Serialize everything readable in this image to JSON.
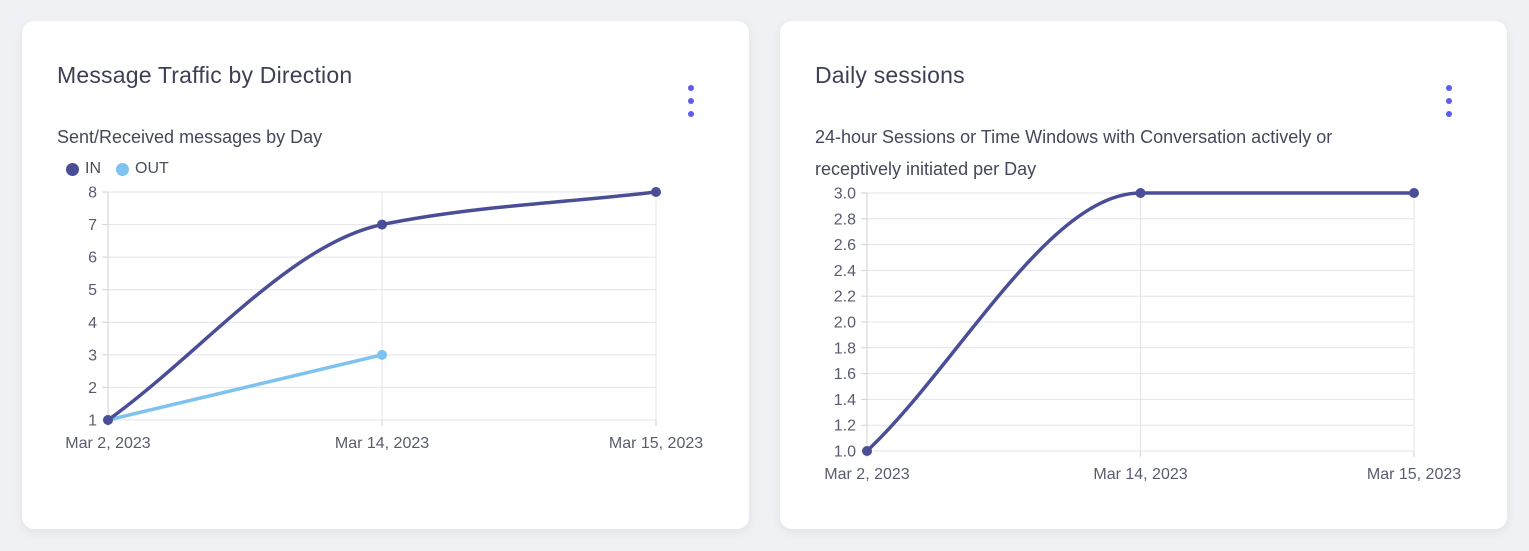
{
  "colors": {
    "page_bg": "#f0f1f4",
    "card_bg": "#ffffff",
    "accent": "#5c5cf0",
    "title_text": "#3e4156",
    "subtitle_text": "#45485a",
    "tick_text": "#595c6e",
    "grid": "#e4e4e9",
    "axis": "#d2d2da",
    "series_in": "#4a4e96",
    "series_out": "#7ec2ef"
  },
  "cards": [
    {
      "title": "Message Traffic by Direction",
      "subtitle_lines": [
        "Sent/Received messages by Day"
      ]
    },
    {
      "title": "Daily sessions",
      "subtitle_lines": [
        "24-hour Sessions or Time Windows with Conversation actively or",
        "receptively initiated per Day"
      ]
    }
  ],
  "chart_data": [
    {
      "type": "line",
      "title": "Message Traffic by Direction",
      "subtitle": "Sent/Received messages by Day",
      "categories": [
        "Mar 2, 2023",
        "Mar 14, 2023",
        "Mar 15, 2023"
      ],
      "series": [
        {
          "name": "IN",
          "color": "#4a4e96",
          "values": [
            1,
            7,
            8
          ]
        },
        {
          "name": "OUT",
          "color": "#7ec2ef",
          "values": [
            1,
            3,
            null
          ]
        }
      ],
      "ylim": [
        1,
        8
      ],
      "ytick_labels": [
        "1",
        "2",
        "3",
        "4",
        "5",
        "6",
        "7",
        "8"
      ],
      "grid": true,
      "legend_position": "top-left"
    },
    {
      "type": "line",
      "title": "Daily sessions",
      "subtitle": "24-hour Sessions or Time Windows with Conversation actively or receptively initiated per Day",
      "categories": [
        "Mar 2, 2023",
        "Mar 14, 2023",
        "Mar 15, 2023"
      ],
      "series": [
        {
          "name": "Daily sessions",
          "color": "#4a4e96",
          "values": [
            1.0,
            3.0,
            3.0
          ]
        }
      ],
      "ylim": [
        1.0,
        3.0
      ],
      "ytick_labels": [
        "1.0",
        "1.2",
        "1.4",
        "1.6",
        "1.8",
        "2.0",
        "2.2",
        "2.4",
        "2.6",
        "2.8",
        "3.0"
      ],
      "grid": true,
      "legend_position": "none"
    }
  ]
}
